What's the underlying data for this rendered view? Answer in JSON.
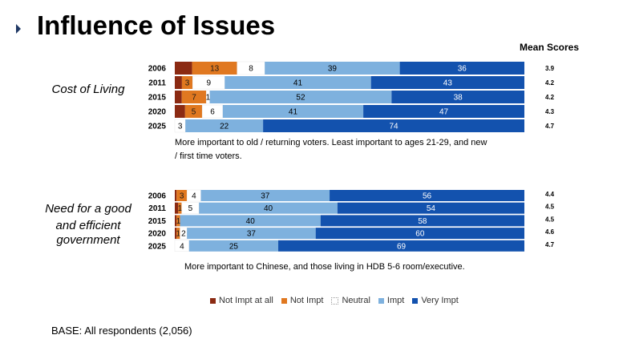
{
  "page": {
    "title": "Influence of Issues",
    "mean_scores_header": "Mean Scores",
    "base_text": "BASE: All respondents (2,056)"
  },
  "legend": [
    {
      "label": "Not Impt at all",
      "color": "#8b2a12"
    },
    {
      "label": "Not Impt",
      "color": "#e07820"
    },
    {
      "label": "Neutral",
      "color": "#ffffff"
    },
    {
      "label": "Impt",
      "color": "#7eb1de"
    },
    {
      "label": "Very Impt",
      "color": "#1352ae"
    }
  ],
  "chart_data": [
    {
      "type": "bar",
      "orientation": "horizontal-stacked-100",
      "title": "Cost of Living",
      "categories": [
        "2006",
        "2011",
        "2015",
        "2020",
        "2025"
      ],
      "series": [
        {
          "name": "Not Impt at all",
          "values": [
            5,
            2,
            2,
            3,
            0
          ]
        },
        {
          "name": "Not Impt",
          "values": [
            13,
            3,
            7,
            5,
            0
          ]
        },
        {
          "name": "Neutral",
          "values": [
            8,
            9,
            1,
            6,
            3
          ]
        },
        {
          "name": "Impt",
          "values": [
            39,
            41,
            52,
            41,
            22
          ]
        },
        {
          "name": "Very Impt",
          "values": [
            36,
            43,
            38,
            47,
            74
          ]
        }
      ],
      "labels": [
        [
          "",
          "13",
          "8",
          "39",
          "36"
        ],
        [
          "",
          "3",
          "9",
          "41",
          "43"
        ],
        [
          "",
          "7",
          "1",
          "52",
          "38"
        ],
        [
          "",
          "5",
          "6",
          "41",
          "47"
        ],
        [
          "",
          "",
          "3",
          "22",
          "74"
        ]
      ],
      "mean_scores": [
        "3.9",
        "4.2",
        "4.2",
        "4.3",
        "4.7"
      ],
      "note": [
        "More important to old / returning voters. Least important to ages 21-29, and new",
        "/ first time voters."
      ],
      "xlim": [
        0,
        100
      ]
    },
    {
      "type": "bar",
      "orientation": "horizontal-stacked-100",
      "title": [
        "Need for a good",
        "and efficient",
        "government"
      ],
      "categories": [
        "2006",
        "2011",
        "2015",
        "2020",
        "2025"
      ],
      "series": [
        {
          "name": "Not Impt at all",
          "values": [
            0.5,
            1,
            0.5,
            0.5,
            0
          ]
        },
        {
          "name": "Not Impt",
          "values": [
            3,
            1,
            1,
            1,
            0
          ]
        },
        {
          "name": "Neutral",
          "values": [
            4,
            5,
            0,
            2,
            4
          ]
        },
        {
          "name": "Impt",
          "values": [
            37,
            40,
            40,
            37,
            25
          ]
        },
        {
          "name": "Very Impt",
          "values": [
            56,
            54,
            58,
            60,
            69
          ]
        }
      ],
      "labels": [
        [
          "",
          "3",
          "4",
          "37",
          "56"
        ],
        [
          "",
          "1",
          "5",
          "40",
          "54"
        ],
        [
          "",
          "1",
          "",
          "40",
          "58"
        ],
        [
          "",
          "1",
          "2",
          "37",
          "60"
        ],
        [
          "",
          "",
          "4",
          "25",
          "69"
        ]
      ],
      "mean_scores": [
        "4.4",
        "4.5",
        "4.5",
        "4.6",
        "4.7"
      ],
      "note": [
        "More important to Chinese, and those living in HDB 5-6 room/executive."
      ],
      "xlim": [
        0,
        100
      ]
    }
  ]
}
